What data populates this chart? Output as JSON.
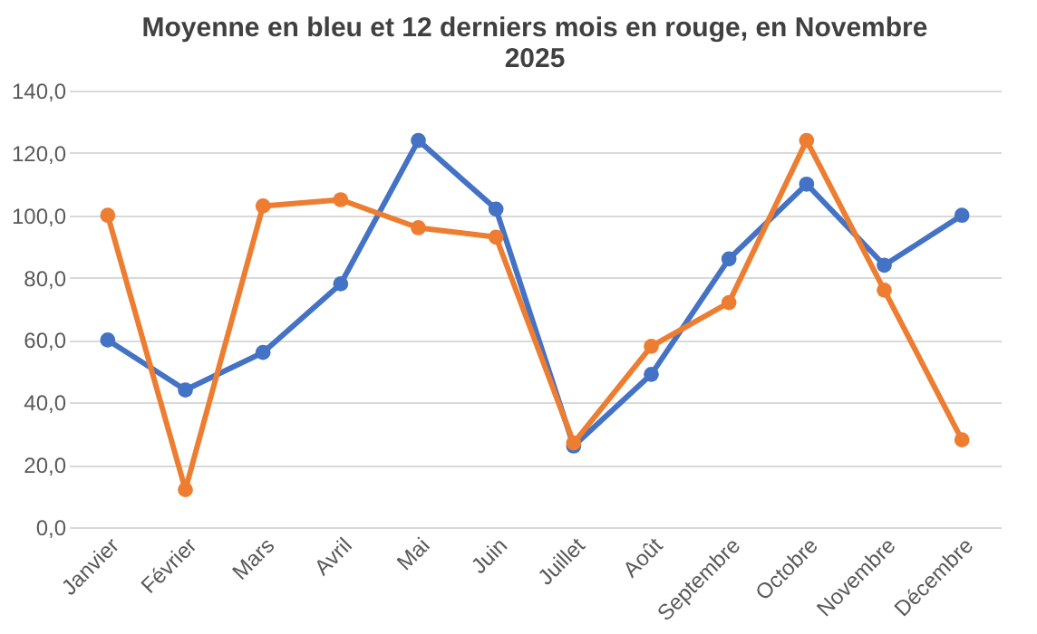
{
  "chart_data": {
    "type": "line",
    "title": "Moyenne en bleu et 12 derniers mois en rouge, en Novembre 2025",
    "categories": [
      "Janvier",
      "Février",
      "Mars",
      "Avril",
      "Mai",
      "Juin",
      "Juillet",
      "Août",
      "Septembre",
      "Octobre",
      "Novembre",
      "Décembre"
    ],
    "series": [
      {
        "color": "#4472c4",
        "values": [
          60,
          44,
          56,
          78,
          124,
          102,
          26,
          49,
          86,
          110,
          84,
          100
        ]
      },
      {
        "color": "#ed7d31",
        "values": [
          100,
          12,
          103,
          105,
          96,
          93,
          27,
          58,
          72,
          124,
          76,
          28
        ]
      }
    ],
    "ylim": [
      0,
      140
    ],
    "yticks": [
      {
        "value": 0,
        "label": "0,0"
      },
      {
        "value": 20,
        "label": "20,0"
      },
      {
        "value": 40,
        "label": "40,0"
      },
      {
        "value": 60,
        "label": "60,0"
      },
      {
        "value": 80,
        "label": "80,0"
      },
      {
        "value": 100,
        "label": "100,0"
      },
      {
        "value": 120,
        "label": "120,0"
      },
      {
        "value": 140,
        "label": "140,0"
      }
    ],
    "grid": "y",
    "legend": false,
    "marker": "circle",
    "line_style": "solid"
  }
}
